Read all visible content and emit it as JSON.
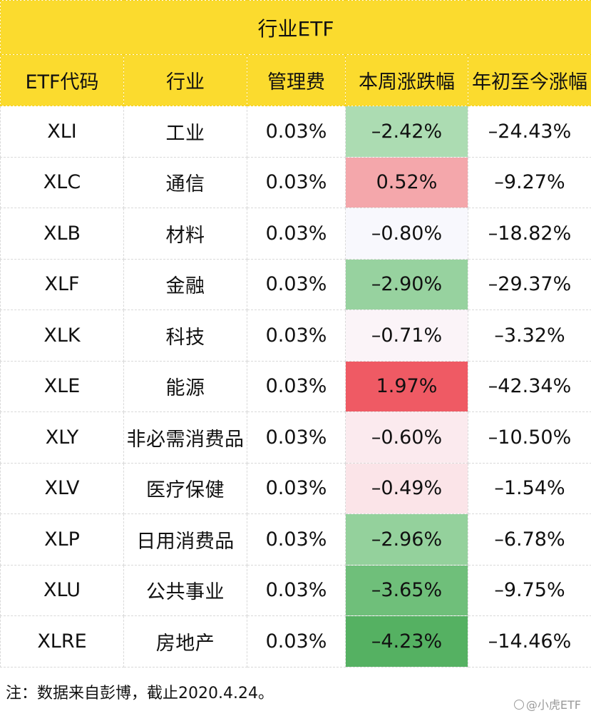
{
  "table": {
    "title": "行业ETF",
    "headers": [
      "ETF代码",
      "行业",
      "管理费",
      "本周涨跌幅",
      "年初至今涨幅"
    ],
    "rows": [
      {
        "code": "XLI",
        "sector": "工业",
        "fee": "0.03%",
        "week": "–2.42%",
        "ytd": "–24.43%",
        "week_color": "#acdcb2"
      },
      {
        "code": "XLC",
        "sector": "通信",
        "fee": "0.03%",
        "week": "0.52%",
        "ytd": "–9.27%",
        "week_color": "#f4a7ab"
      },
      {
        "code": "XLB",
        "sector": "材料",
        "fee": "0.03%",
        "week": "–0.80%",
        "ytd": "–18.82%",
        "week_color": "#f8f8fd"
      },
      {
        "code": "XLF",
        "sector": "金融",
        "fee": "0.03%",
        "week": "–2.90%",
        "ytd": "–29.37%",
        "week_color": "#97d29f"
      },
      {
        "code": "XLK",
        "sector": "科技",
        "fee": "0.03%",
        "week": "–0.71%",
        "ytd": "–3.32%",
        "week_color": "#fbf4f8"
      },
      {
        "code": "XLE",
        "sector": "能源",
        "fee": "0.03%",
        "week": "1.97%",
        "ytd": "–42.34%",
        "week_color": "#ef5a64"
      },
      {
        "code": "XLY",
        "sector": "非必需消费品",
        "fee": "0.03%",
        "week": "–0.60%",
        "ytd": "–10.50%",
        "week_color": "#fbeaee"
      },
      {
        "code": "XLV",
        "sector": "医疗保健",
        "fee": "0.03%",
        "week": "–0.49%",
        "ytd": "–1.54%",
        "week_color": "#fbe4e8"
      },
      {
        "code": "XLP",
        "sector": "日用消费品",
        "fee": "0.03%",
        "week": "–2.96%",
        "ytd": "–6.78%",
        "week_color": "#94d19c"
      },
      {
        "code": "XLU",
        "sector": "公共事业",
        "fee": "0.03%",
        "week": "–3.65%",
        "ytd": "–9.75%",
        "week_color": "#6fbf7a"
      },
      {
        "code": "XLRE",
        "sector": "房地产",
        "fee": "0.03%",
        "week": "–4.23%",
        "ytd": "–14.46%",
        "week_color": "#55b162"
      }
    ]
  },
  "footnote": "注：数据来自彭博，截止2020.4.24。",
  "watermark": "@小虎ETF",
  "colors": {
    "header_bg": "#fbdb2e"
  }
}
